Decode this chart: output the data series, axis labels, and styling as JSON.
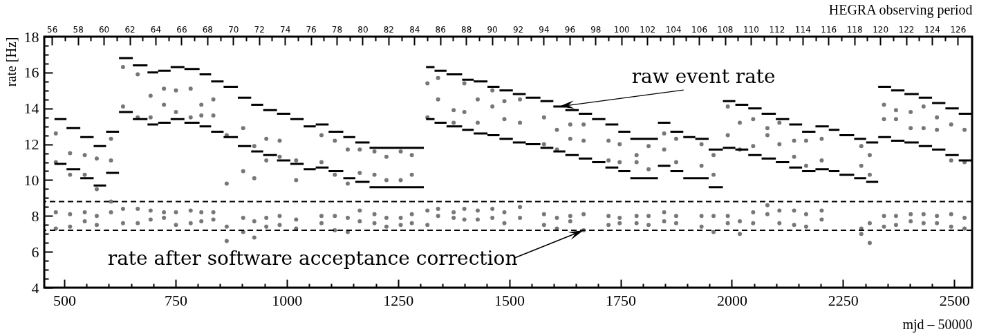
{
  "chart_data": {
    "type": "scatter",
    "xlabel": "mjd – 50000",
    "ylabel": "rate [Hz]",
    "x2label": "HEGRA observing period",
    "xlim": [
      455,
      2540
    ],
    "ylim": [
      4,
      18
    ],
    "x2lim": [
      55.4,
      127.1
    ],
    "xticks": [
      500,
      {
        "value": 550,
        "label": null
      },
      {
        "value": 600,
        "label": null
      },
      {
        "value": 650,
        "label": null
      },
      {
        "value": 700,
        "label": null
      },
      750,
      {
        "value": 800,
        "label": null
      },
      {
        "value": 850,
        "label": null
      },
      {
        "value": 900,
        "label": null
      },
      {
        "value": 950,
        "label": null
      },
      1000,
      {
        "value": 1050,
        "label": null
      },
      {
        "value": 1100,
        "label": null
      },
      {
        "value": 1150,
        "label": null
      },
      {
        "value": 1200,
        "label": null
      },
      1250,
      {
        "value": 1300,
        "label": null
      },
      {
        "value": 1350,
        "label": null
      },
      {
        "value": 1400,
        "label": null
      },
      {
        "value": 1450,
        "label": null
      },
      1500,
      {
        "value": 1550,
        "label": null
      },
      {
        "value": 1600,
        "label": null
      },
      {
        "value": 1650,
        "label": null
      },
      {
        "value": 1700,
        "label": null
      },
      1750,
      {
        "value": 1800,
        "label": null
      },
      {
        "value": 1850,
        "label": null
      },
      {
        "value": 1900,
        "label": null
      },
      {
        "value": 1950,
        "label": null
      },
      2000,
      {
        "value": 2050,
        "label": null
      },
      {
        "value": 2100,
        "label": null
      },
      {
        "value": 2150,
        "label": null
      },
      {
        "value": 2200,
        "label": null
      },
      2250,
      {
        "value": 2300,
        "label": null
      },
      {
        "value": 2350,
        "label": null
      },
      {
        "value": 2400,
        "label": null
      },
      {
        "value": 2450,
        "label": null
      },
      2500
    ],
    "yticks": [
      4,
      {
        "value": 4.5,
        "label": null
      },
      {
        "value": 5,
        "label": null
      },
      {
        "value": 5.5,
        "label": null
      },
      6,
      {
        "value": 6.5,
        "label": null
      },
      {
        "value": 7,
        "label": null
      },
      {
        "value": 7.5,
        "label": null
      },
      8,
      {
        "value": 8.5,
        "label": null
      },
      {
        "value": 9,
        "label": null
      },
      {
        "value": 9.5,
        "label": null
      },
      10,
      {
        "value": 10.5,
        "label": null
      },
      {
        "value": 11,
        "label": null
      },
      {
        "value": 11.5,
        "label": null
      },
      12,
      {
        "value": 12.5,
        "label": null
      },
      {
        "value": 13,
        "label": null
      },
      {
        "value": 13.5,
        "label": null
      },
      14,
      {
        "value": 14.5,
        "label": null
      },
      {
        "value": 15,
        "label": null
      },
      {
        "value": 15.5,
        "label": null
      },
      16,
      {
        "value": 16.5,
        "label": null
      },
      {
        "value": 17,
        "label": null
      },
      {
        "value": 17.5,
        "label": null
      },
      18
    ],
    "x2ticks": [
      56,
      {
        "value": 57,
        "label": null
      },
      58,
      {
        "value": 59,
        "label": null
      },
      60,
      {
        "value": 61,
        "label": null
      },
      62,
      {
        "value": 63,
        "label": null
      },
      64,
      {
        "value": 65,
        "label": null
      },
      66,
      {
        "value": 67,
        "label": null
      },
      68,
      {
        "value": 69,
        "label": null
      },
      70,
      {
        "value": 71,
        "label": null
      },
      72,
      {
        "value": 73,
        "label": null
      },
      74,
      {
        "value": 75,
        "label": null
      },
      76,
      {
        "value": 77,
        "label": null
      },
      78,
      {
        "value": 79,
        "label": null
      },
      80,
      {
        "value": 81,
        "label": null
      },
      82,
      {
        "value": 83,
        "label": null
      },
      84,
      {
        "value": 85,
        "label": null
      },
      86,
      {
        "value": 87,
        "label": null
      },
      88,
      {
        "value": 89,
        "label": null
      },
      90,
      {
        "value": 91,
        "label": null
      },
      92,
      {
        "value": 93,
        "label": null
      },
      94,
      {
        "value": 95,
        "label": null
      },
      96,
      {
        "value": 97,
        "label": null
      },
      98,
      {
        "value": 99,
        "label": null
      },
      100,
      {
        "value": 101,
        "label": null
      },
      102,
      {
        "value": 103,
        "label": null
      },
      104,
      {
        "value": 105,
        "label": null
      },
      106,
      {
        "value": 107,
        "label": null
      },
      108,
      {
        "value": 109,
        "label": null
      },
      110,
      {
        "value": 111,
        "label": null
      },
      112,
      {
        "value": 113,
        "label": null
      },
      114,
      {
        "value": 115,
        "label": null
      },
      116,
      {
        "value": 117,
        "label": null
      },
      118,
      {
        "value": 119,
        "label": null
      },
      120,
      {
        "value": 121,
        "label": null
      },
      122,
      {
        "value": 123,
        "label": null
      },
      124,
      {
        "value": 125,
        "label": null
      },
      126
    ],
    "series": [
      {
        "type": "scatter",
        "marker": "circle",
        "color": "#555555",
        "x": [
          481,
          481,
          513,
          513,
          546,
          546,
          573,
          573,
          605,
          605,
          632,
          632,
          665,
          665,
          694,
          694,
          724,
          724,
          751,
          751,
          784,
          784,
          808,
          808,
          835,
          835,
          865,
          865,
          902,
          902,
          927,
          927,
          954,
          954,
          984,
          984,
          1021,
          1021,
          1078,
          1078,
          1108,
          1108,
          1137,
          1137,
          1164,
          1164,
          1197,
          1197,
          1224,
          1224,
          1256,
          1256,
          1281,
          1281,
          1316,
          1316,
          1340,
          1340,
          1375,
          1375,
          1399,
          1399,
          1429,
          1429,
          1462,
          1462,
          1489,
          1489,
          1524,
          1524,
          1578,
          1578,
          1607,
          1607,
          1637,
          1637,
          1667,
          1667,
          1723,
          1723,
          1748,
          1748,
          1786,
          1786,
          1813,
          1813,
          1848,
          1848,
          1875,
          1875,
          1932,
          1932,
          1959,
          1959,
          1991,
          1991,
          2018,
          2018,
          2048,
          2048,
          2080,
          2080,
          2107,
          2107,
          2140,
          2140,
          2167,
          2167,
          2202,
          2202,
          2291,
          2291,
          2310,
          2310,
          2342,
          2342,
          2369,
          2369,
          2402,
          2402,
          2431,
          2431,
          2461,
          2461,
          2493,
          2493,
          2523,
          2523
        ],
        "values": [
          12.6,
          11.0,
          11.5,
          10.3,
          11.4,
          10.3,
          11.2,
          9.5,
          12.3,
          11.1,
          16.3,
          14.1,
          15.9,
          13.5,
          14.7,
          13.5,
          15.1,
          14.2,
          15.0,
          13.8,
          15.1,
          13.5,
          14.2,
          13.6,
          14.5,
          13.6,
          12.5,
          9.8,
          12.9,
          10.5,
          11.9,
          10.1,
          12.3,
          11.1,
          12.2,
          11.3,
          11.1,
          10.0,
          12.5,
          11.0,
          12.2,
          10.3,
          11.7,
          9.8,
          11.7,
          10.4,
          11.6,
          10.3,
          11.3,
          10.0,
          11.6,
          10.0,
          11.4,
          10.3,
          15.4,
          13.5,
          15.7,
          14.5,
          13.9,
          13.2,
          15.4,
          13.8,
          14.5,
          13.2,
          15.0,
          14.1,
          14.4,
          13.4,
          14.5,
          13.2,
          13.5,
          12.0,
          12.8,
          11.7,
          13.1,
          12.3,
          13.1,
          12.2,
          12.2,
          11.1,
          12.0,
          11.0,
          11.4,
          11.0,
          11.9,
          10.6,
          12.6,
          11.7,
          12.3,
          11.0,
          12.0,
          10.8,
          11.4,
          10.3,
          14.1,
          12.5,
          13.2,
          11.7,
          13.4,
          11.9,
          12.9,
          12.5,
          13.2,
          12.0,
          12.2,
          11.3,
          12.2,
          10.8,
          12.3,
          11.1,
          11.9,
          10.8,
          11.4,
          10.3,
          14.2,
          13.4,
          13.9,
          13.4,
          13.8,
          12.9,
          14.1,
          12.9,
          13.5,
          12.8,
          13.1,
          11.1,
          12.8,
          11.0
        ]
      },
      {
        "type": "scatter",
        "marker": "circle",
        "color": "#555555",
        "x": [
          481,
          481,
          513,
          513,
          546,
          546,
          573,
          573,
          605,
          605,
          632,
          632,
          665,
          665,
          694,
          694,
          724,
          724,
          751,
          751,
          784,
          784,
          808,
          808,
          835,
          835,
          865,
          865,
          902,
          902,
          927,
          927,
          954,
          954,
          984,
          984,
          1021,
          1021,
          1078,
          1078,
          1108,
          1108,
          1137,
          1137,
          1164,
          1164,
          1197,
          1197,
          1224,
          1224,
          1256,
          1256,
          1281,
          1281,
          1316,
          1316,
          1340,
          1340,
          1375,
          1375,
          1399,
          1399,
          1429,
          1429,
          1462,
          1462,
          1489,
          1489,
          1524,
          1524,
          1578,
          1578,
          1607,
          1607,
          1637,
          1637,
          1667,
          1667,
          1723,
          1723,
          1748,
          1748,
          1786,
          1786,
          1813,
          1813,
          1848,
          1848,
          1875,
          1875,
          1932,
          1932,
          1959,
          1959,
          1991,
          1991,
          2018,
          2018,
          2048,
          2048,
          2080,
          2080,
          2107,
          2107,
          2140,
          2140,
          2167,
          2167,
          2202,
          2202,
          2291,
          2291,
          2310,
          2310,
          2342,
          2342,
          2369,
          2369,
          2402,
          2402,
          2431,
          2431,
          2461,
          2461,
          2493,
          2493,
          2523,
          2523
        ],
        "values": [
          8.2,
          7.3,
          8.1,
          7.4,
          8.2,
          7.7,
          8.0,
          7.5,
          8.8,
          8.2,
          8.4,
          7.6,
          8.4,
          7.6,
          8.3,
          7.8,
          8.2,
          7.9,
          8.2,
          7.5,
          8.3,
          7.6,
          8.2,
          7.7,
          8.2,
          7.8,
          7.4,
          6.6,
          7.9,
          7.1,
          7.7,
          6.8,
          7.9,
          7.4,
          8.0,
          7.5,
          7.8,
          7.3,
          8.0,
          7.6,
          8.0,
          7.2,
          7.9,
          7.1,
          8.3,
          7.7,
          8.1,
          7.6,
          7.9,
          7.4,
          7.9,
          7.5,
          8.1,
          7.6,
          8.3,
          7.5,
          8.4,
          8.0,
          8.2,
          7.9,
          8.4,
          7.8,
          8.3,
          7.8,
          8.4,
          7.9,
          8.2,
          7.6,
          8.5,
          7.9,
          8.1,
          7.5,
          7.9,
          7.3,
          8.0,
          7.7,
          8.1,
          7.2,
          8.0,
          7.5,
          7.9,
          7.6,
          8.0,
          7.6,
          8.0,
          7.5,
          8.2,
          7.7,
          8.0,
          7.6,
          8.0,
          7.4,
          8.0,
          7.1,
          8.0,
          7.6,
          7.7,
          7.0,
          8.2,
          7.6,
          8.6,
          8.1,
          8.3,
          7.6,
          8.3,
          7.5,
          8.1,
          7.4,
          8.3,
          7.8,
          7.3,
          7.0,
          7.6,
          6.5,
          8.0,
          7.4,
          8.0,
          7.5,
          8.1,
          7.7,
          8.1,
          7.6,
          8.0,
          7.6,
          8.1,
          7.4,
          7.9,
          7.3
        ]
      },
      {
        "type": "line",
        "marker": "none",
        "color": "#000000",
        "x": [
          478,
          505,
          null,
          505,
          536,
          null,
          536,
          566,
          null,
          566,
          594,
          null,
          594,
          623,
          null,
          623,
          654,
          null,
          654,
          687,
          null,
          687,
          711,
          null,
          711,
          739,
          null,
          739,
          770,
          null,
          770,
          804,
          null,
          804,
          830,
          null,
          830,
          858,
          null,
          858,
          890,
          null,
          890,
          920,
          null,
          920,
          947,
          null,
          947,
          978,
          null,
          978,
          1008,
          null,
          1008,
          1038,
          null,
          1038,
          1065,
          null,
          1065,
          1094,
          null,
          1094,
          1127,
          null,
          1127,
          1154,
          null,
          1154,
          1186,
          null,
          1186,
          1308,
          null,
          1313,
          1332,
          null,
          1332,
          1359,
          null,
          1359,
          1394,
          null,
          1394,
          1420,
          null,
          1420,
          1451,
          null,
          1451,
          1478,
          null,
          1478,
          1508,
          null,
          1508,
          1537,
          null,
          1537,
          1570,
          null,
          1570,
          1599,
          null,
          1599,
          1626,
          null,
          1626,
          1656,
          null,
          1656,
          1686,
          null,
          1686,
          1716,
          null,
          1716,
          1745,
          null,
          1745,
          1772,
          null,
          1772,
          1834,
          null,
          1834,
          1862,
          null,
          1862,
          1891,
          null,
          1891,
          1918,
          null,
          1918,
          1948,
          null,
          1948,
          1980,
          null,
          1980,
          2008,
          null,
          2008,
          2037,
          null,
          2037,
          2067,
          null,
          2067,
          2099,
          null,
          2099,
          2129,
          null,
          2129,
          2158,
          null,
          2158,
          2188,
          null,
          2188,
          2218,
          null,
          2218,
          2242,
          null,
          2242,
          2275,
          null,
          2275,
          2302,
          null,
          2302,
          2329,
          null,
          2329,
          2358,
          null,
          2358,
          2388,
          null,
          2388,
          2420,
          null,
          2420,
          2450,
          null,
          2450,
          2480,
          null,
          2480,
          2510,
          null,
          2510,
          2539,
          null
        ],
        "values": [
          13.4,
          13.4,
          null,
          12.9,
          12.9,
          null,
          12.4,
          12.4,
          null,
          11.9,
          11.9,
          null,
          12.7,
          12.7,
          null,
          16.8,
          16.8,
          null,
          16.4,
          16.4,
          null,
          16.0,
          16.0,
          null,
          16.1,
          16.1,
          null,
          16.3,
          16.3,
          null,
          16.2,
          16.2,
          null,
          15.9,
          15.9,
          null,
          15.5,
          15.5,
          null,
          15.2,
          15.2,
          null,
          14.6,
          14.6,
          null,
          14.2,
          14.2,
          null,
          13.9,
          13.9,
          null,
          13.7,
          13.7,
          null,
          13.4,
          13.4,
          null,
          13.0,
          13.0,
          null,
          13.1,
          13.1,
          null,
          12.7,
          12.7,
          null,
          12.4,
          12.4,
          null,
          12.1,
          12.1,
          null,
          11.8,
          11.8,
          null,
          16.3,
          16.3,
          null,
          16.1,
          16.1,
          null,
          15.9,
          15.9,
          null,
          15.6,
          15.6,
          null,
          15.5,
          15.5,
          null,
          15.2,
          15.2,
          null,
          15.0,
          15.0,
          null,
          14.8,
          14.8,
          null,
          14.6,
          14.6,
          null,
          14.4,
          14.4,
          null,
          14.1,
          14.1,
          null,
          13.9,
          13.9,
          null,
          13.7,
          13.7,
          null,
          13.4,
          13.4,
          null,
          13.1,
          13.1,
          null,
          12.7,
          12.7,
          null,
          12.3,
          12.3,
          null,
          13.2,
          13.2,
          null,
          12.7,
          12.7,
          null,
          12.4,
          12.4,
          null,
          12.3,
          12.3,
          null,
          11.7,
          11.7,
          null,
          14.4,
          14.4,
          null,
          14.2,
          14.2,
          null,
          14.0,
          14.0,
          null,
          13.7,
          13.7,
          null,
          13.4,
          13.4,
          null,
          13.1,
          13.1,
          null,
          12.7,
          12.7,
          null,
          13.0,
          13.0,
          null,
          12.8,
          12.8,
          null,
          12.5,
          12.5,
          null,
          12.3,
          12.3,
          null,
          12.1,
          12.1,
          null,
          15.2,
          15.2,
          null,
          15.0,
          15.0,
          null,
          14.8,
          14.8,
          null,
          14.6,
          14.6,
          null,
          14.3,
          14.3,
          null,
          14.0,
          14.0,
          null,
          13.7,
          13.7,
          null
        ]
      },
      {
        "type": "line",
        "marker": "none",
        "color": "#000000",
        "x": [
          478,
          505,
          null,
          505,
          536,
          null,
          536,
          566,
          null,
          566,
          594,
          null,
          594,
          623,
          null,
          623,
          654,
          null,
          654,
          687,
          null,
          687,
          711,
          null,
          711,
          739,
          null,
          739,
          770,
          null,
          770,
          804,
          null,
          804,
          830,
          null,
          830,
          858,
          null,
          858,
          890,
          null,
          890,
          920,
          null,
          920,
          947,
          null,
          947,
          978,
          null,
          978,
          1008,
          null,
          1008,
          1038,
          null,
          1038,
          1065,
          null,
          1065,
          1094,
          null,
          1094,
          1127,
          null,
          1127,
          1154,
          null,
          1154,
          1186,
          null,
          1186,
          1308,
          null,
          1313,
          1332,
          null,
          1332,
          1359,
          null,
          1359,
          1394,
          null,
          1394,
          1420,
          null,
          1420,
          1451,
          null,
          1451,
          1478,
          null,
          1478,
          1508,
          null,
          1508,
          1537,
          null,
          1537,
          1570,
          null,
          1570,
          1599,
          null,
          1599,
          1626,
          null,
          1626,
          1656,
          null,
          1656,
          1686,
          null,
          1686,
          1716,
          null,
          1716,
          1745,
          null,
          1745,
          1772,
          null,
          1772,
          1834,
          null,
          1834,
          1862,
          null,
          1862,
          1891,
          null,
          1891,
          1918,
          null,
          1918,
          1948,
          null,
          1948,
          1980,
          null,
          1980,
          2008,
          null,
          2008,
          2037,
          null,
          2037,
          2067,
          null,
          2067,
          2099,
          null,
          2099,
          2129,
          null,
          2129,
          2158,
          null,
          2158,
          2188,
          null,
          2188,
          2218,
          null,
          2218,
          2242,
          null,
          2242,
          2275,
          null,
          2275,
          2302,
          null,
          2302,
          2329,
          null,
          2329,
          2358,
          null,
          2358,
          2388,
          null,
          2388,
          2420,
          null,
          2420,
          2450,
          null,
          2450,
          2480,
          null,
          2480,
          2510,
          null,
          2510,
          2539,
          null
        ],
        "values": [
          10.9,
          10.9,
          null,
          10.6,
          10.6,
          null,
          10.1,
          10.1,
          null,
          9.7,
          9.7,
          null,
          10.4,
          10.4,
          null,
          13.8,
          13.8,
          null,
          13.4,
          13.4,
          null,
          13.1,
          13.1,
          null,
          13.2,
          13.2,
          null,
          13.4,
          13.4,
          null,
          13.2,
          13.2,
          null,
          13.0,
          13.0,
          null,
          12.7,
          12.7,
          null,
          12.4,
          12.4,
          null,
          11.9,
          11.9,
          null,
          11.6,
          11.6,
          null,
          11.4,
          11.4,
          null,
          11.1,
          11.1,
          null,
          10.9,
          10.9,
          null,
          10.6,
          10.6,
          null,
          10.7,
          10.7,
          null,
          10.5,
          10.5,
          null,
          10.1,
          10.1,
          null,
          9.9,
          9.9,
          null,
          9.6,
          9.6,
          null,
          13.4,
          13.4,
          null,
          13.2,
          13.2,
          null,
          13.0,
          13.0,
          null,
          12.8,
          12.8,
          null,
          12.6,
          12.6,
          null,
          12.5,
          12.5,
          null,
          12.3,
          12.3,
          null,
          12.1,
          12.1,
          null,
          12.0,
          12.0,
          null,
          11.8,
          11.8,
          null,
          11.6,
          11.6,
          null,
          11.4,
          11.4,
          null,
          11.2,
          11.2,
          null,
          11.0,
          11.0,
          null,
          10.7,
          10.7,
          null,
          10.5,
          10.5,
          null,
          10.1,
          10.1,
          null,
          10.8,
          10.8,
          null,
          10.5,
          10.5,
          null,
          10.1,
          10.1,
          null,
          10.1,
          10.1,
          null,
          9.6,
          9.6,
          null,
          11.8,
          11.8,
          null,
          11.7,
          11.7,
          null,
          11.4,
          11.4,
          null,
          11.2,
          11.2,
          null,
          11.0,
          11.0,
          null,
          10.7,
          10.7,
          null,
          10.5,
          10.5,
          null,
          10.6,
          10.6,
          null,
          10.5,
          10.5,
          null,
          10.3,
          10.3,
          null,
          10.1,
          10.1,
          null,
          9.9,
          9.9,
          null,
          12.4,
          12.4,
          null,
          12.2,
          12.2,
          null,
          12.1,
          12.1,
          null,
          11.9,
          11.9,
          null,
          11.7,
          11.7,
          null,
          11.4,
          11.4,
          null,
          11.1,
          11.1,
          null
        ]
      }
    ],
    "ref_lines": [
      {
        "axis": "y",
        "value": 8.8,
        "color": "#000000",
        "line_style": "dashed"
      },
      {
        "axis": "y",
        "value": 7.2,
        "color": "#000000",
        "line_style": "dashed"
      }
    ],
    "annotations": [
      {
        "text": "raw event rate",
        "x": 1612,
        "y": 14.1
      },
      {
        "text": "rate after software acceptance correction",
        "x": 1667,
        "y": 7.2
      }
    ]
  }
}
